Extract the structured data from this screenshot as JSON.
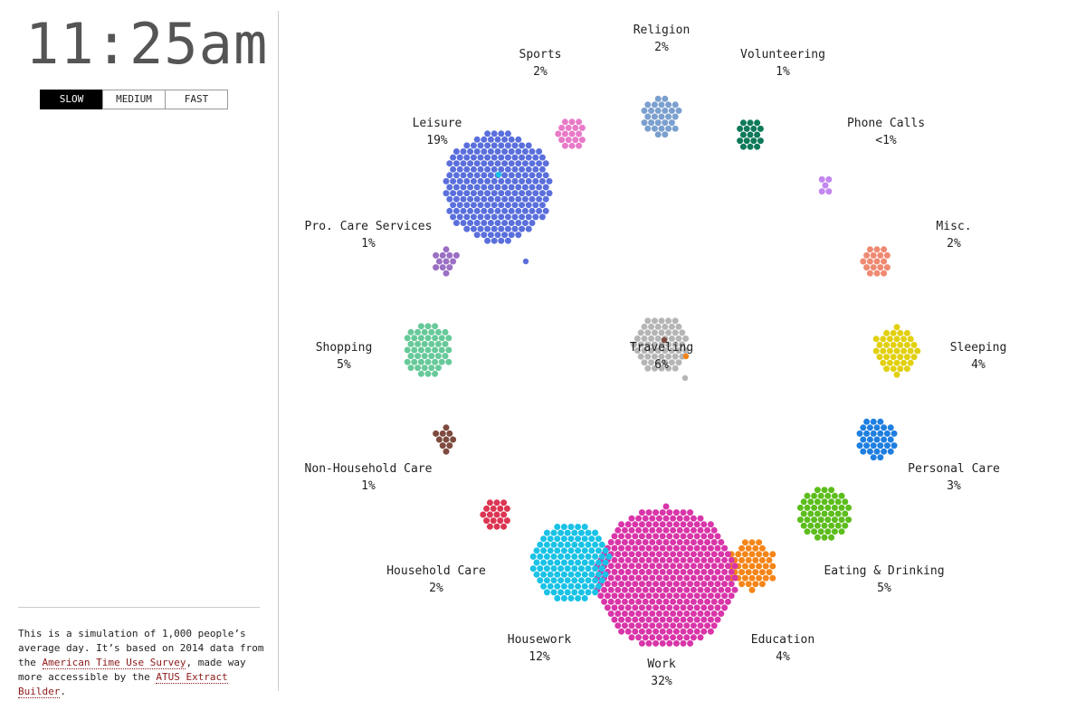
{
  "clock": "11:25am",
  "speed": {
    "options": [
      "SLOW",
      "MEDIUM",
      "FAST"
    ],
    "active": "SLOW"
  },
  "about": {
    "text_1": "This is a simulation of 1,000 people’s average day. It’s based on 2014 data from the ",
    "link_1": "American Time Use Survey",
    "text_2": ", made way more accessible by the ",
    "link_2": "ATUS Extract Builder",
    "text_3": "."
  },
  "activities": [
    {
      "name": "Religion",
      "pct": "2%",
      "color": "#7ba0cf"
    },
    {
      "name": "Volunteering",
      "pct": "1%",
      "color": "#0e7a5a"
    },
    {
      "name": "Phone Calls",
      "pct": "<1%",
      "color": "#c486f0"
    },
    {
      "name": "Misc.",
      "pct": "2%",
      "color": "#ef8a72"
    },
    {
      "name": "Sleeping",
      "pct": "4%",
      "color": "#e2d00f"
    },
    {
      "name": "Personal Care",
      "pct": "3%",
      "color": "#1f7fe0"
    },
    {
      "name": "Eating & Drinking",
      "pct": "5%",
      "color": "#5cbd1c"
    },
    {
      "name": "Education",
      "pct": "4%",
      "color": "#f58518"
    },
    {
      "name": "Work",
      "pct": "32%",
      "color": "#d935a9"
    },
    {
      "name": "Housework",
      "pct": "12%",
      "color": "#19c2e6"
    },
    {
      "name": "Household Care",
      "pct": "2%",
      "color": "#dc3552"
    },
    {
      "name": "Non-Household Care",
      "pct": "1%",
      "color": "#7f4a3f"
    },
    {
      "name": "Shopping",
      "pct": "5%",
      "color": "#67c99a"
    },
    {
      "name": "Pro. Care Services",
      "pct": "1%",
      "color": "#9b6fc4"
    },
    {
      "name": "Leisure",
      "pct": "19%",
      "color": "#5a6fdc"
    },
    {
      "name": "Sports",
      "pct": "2%",
      "color": "#e87ac8"
    },
    {
      "name": "Traveling",
      "pct": "6%",
      "color": "#b5b5b5"
    }
  ]
}
